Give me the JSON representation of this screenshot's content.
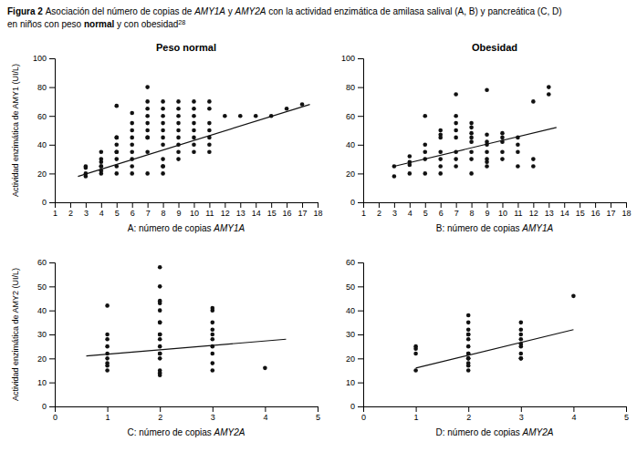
{
  "title": [
    [
      "Figura 2 ",
      "Asociación del número de copias de ",
      "AMY1A",
      " y ",
      "AMY2A",
      " con la actividad enzimática de amilasa salival (A, B) y pancreática (C, D)"
    ],
    [
      "en niños con peso ",
      "normal",
      " y con obesidad",
      "28"
    ]
  ],
  "chart_data": [
    {
      "type": "scatter",
      "title": "Peso normal",
      "y_label": "Actividad enzimática de AMY1 (UI/L)",
      "x_label": "A: número de copias AMY1A",
      "xlim": [
        1,
        18
      ],
      "ylim": [
        0,
        100
      ],
      "xticks": [
        1,
        2,
        3,
        4,
        5,
        6,
        7,
        8,
        9,
        10,
        11,
        12,
        13,
        14,
        15,
        16,
        17,
        18
      ],
      "yticks": [
        0,
        20,
        40,
        60,
        80,
        100
      ],
      "grid": false,
      "series": [
        {
          "type": "scatter",
          "color": "#111111",
          "x": [
            3,
            3,
            3,
            3,
            4,
            4,
            4,
            4,
            4,
            4,
            4,
            5,
            5,
            5,
            5,
            5,
            5,
            5,
            5,
            5,
            6,
            6,
            6,
            6,
            6,
            6,
            6,
            6,
            6,
            7,
            7,
            7,
            7,
            7,
            7,
            7,
            7,
            7,
            7,
            8,
            8,
            8,
            8,
            8,
            8,
            8,
            8,
            8,
            8,
            8,
            9,
            9,
            9,
            9,
            9,
            9,
            9,
            9,
            9,
            10,
            10,
            10,
            10,
            10,
            10,
            10,
            10,
            11,
            11,
            11,
            11,
            11,
            11,
            11,
            12,
            13,
            14,
            15,
            16,
            17
          ],
          "values": [
            20,
            24,
            25,
            18,
            25,
            30,
            35,
            25,
            20,
            28,
            22,
            35,
            40,
            45,
            30,
            25,
            20,
            35,
            67,
            45,
            40,
            45,
            50,
            55,
            62,
            35,
            30,
            25,
            20,
            65,
            45,
            70,
            80,
            50,
            60,
            55,
            35,
            20,
            45,
            45,
            60,
            50,
            55,
            65,
            70,
            40,
            25,
            20,
            30,
            25,
            60,
            65,
            55,
            50,
            45,
            40,
            35,
            70,
            30,
            60,
            55,
            50,
            45,
            40,
            35,
            70,
            65,
            70,
            65,
            55,
            45,
            40,
            35,
            50,
            60,
            60,
            60,
            60,
            65,
            68
          ]
        },
        {
          "type": "line",
          "color": "#111111",
          "x": [
            2.5,
            17.5
          ],
          "values": [
            18,
            68
          ]
        }
      ]
    },
    {
      "type": "scatter",
      "title": "Obesidad",
      "x_label": "B: número de copias AMY1A",
      "xlim": [
        1,
        18
      ],
      "ylim": [
        0,
        100
      ],
      "xticks": [
        1,
        2,
        3,
        4,
        5,
        6,
        7,
        8,
        9,
        10,
        11,
        12,
        13,
        14,
        15,
        16,
        17,
        18
      ],
      "yticks": [
        0,
        20,
        40,
        60,
        80,
        100
      ],
      "grid": false,
      "series": [
        {
          "type": "scatter",
          "color": "#111111",
          "x": [
            3,
            3,
            4,
            4,
            4,
            4,
            5,
            5,
            5,
            5,
            5,
            6,
            6,
            6,
            6,
            6,
            6,
            6,
            7,
            7,
            7,
            7,
            7,
            7,
            7,
            7,
            8,
            8,
            8,
            8,
            8,
            8,
            8,
            8,
            9,
            9,
            9,
            9,
            9,
            9,
            9,
            9,
            10,
            10,
            10,
            10,
            10,
            11,
            11,
            11,
            11,
            12,
            12,
            12,
            13,
            13
          ],
          "values": [
            18,
            25,
            32,
            26,
            20,
            28,
            35,
            40,
            60,
            30,
            20,
            47,
            50,
            45,
            35,
            30,
            25,
            20,
            45,
            50,
            55,
            60,
            75,
            35,
            25,
            30,
            42,
            48,
            52,
            35,
            30,
            20,
            45,
            55,
            40,
            42,
            47,
            78,
            30,
            35,
            25,
            28,
            45,
            48,
            42,
            35,
            30,
            45,
            40,
            35,
            25,
            30,
            25,
            70,
            75,
            80
          ]
        },
        {
          "type": "line",
          "color": "#111111",
          "x": [
            3,
            13.5
          ],
          "values": [
            25,
            52
          ]
        }
      ]
    },
    {
      "type": "scatter",
      "y_label": "Actividad enzimática de AMY2 (UI/L)",
      "x_label": "C: número de copias AMY2A",
      "xlim": [
        0,
        5
      ],
      "ylim": [
        0,
        60
      ],
      "xticks": [
        0,
        1,
        2,
        3,
        4,
        5
      ],
      "yticks": [
        0,
        10,
        20,
        30,
        40,
        50,
        60
      ],
      "grid": false,
      "series": [
        {
          "type": "scatter",
          "color": "#111111",
          "x": [
            1,
            1,
            1,
            1,
            1,
            1,
            1,
            1,
            1,
            2,
            2,
            2,
            2,
            2,
            2,
            2,
            2,
            2,
            2,
            2,
            2,
            2,
            2,
            2,
            2,
            2,
            3,
            3,
            3,
            3,
            3,
            3,
            3,
            3,
            3,
            3,
            4
          ],
          "values": [
            20,
            25,
            28,
            22,
            18,
            15,
            30,
            17,
            42,
            22,
            25,
            30,
            35,
            40,
            44,
            50,
            58,
            28,
            20,
            15,
            13,
            30,
            35,
            43,
            22,
            14,
            25,
            30,
            35,
            40,
            32,
            28,
            22,
            15,
            41,
            18,
            16
          ]
        },
        {
          "type": "line",
          "color": "#111111",
          "x": [
            0.6,
            4.4
          ],
          "values": [
            21,
            28
          ]
        }
      ]
    },
    {
      "type": "scatter",
      "x_label": "D: número de copias AMY2A",
      "xlim": [
        0,
        5
      ],
      "ylim": [
        0,
        60
      ],
      "xticks": [
        0,
        1,
        2,
        3,
        4,
        5
      ],
      "yticks": [
        0,
        10,
        20,
        30,
        40,
        50,
        60
      ],
      "grid": false,
      "series": [
        {
          "type": "scatter",
          "color": "#111111",
          "x": [
            1,
            1,
            1,
            1,
            2,
            2,
            2,
            2,
            2,
            2,
            2,
            2,
            2,
            2,
            2,
            2,
            2,
            2,
            3,
            3,
            3,
            3,
            3,
            3,
            3,
            3,
            3,
            4
          ],
          "values": [
            15,
            22,
            25,
            24,
            17,
            20,
            22,
            25,
            28,
            30,
            32,
            35,
            38,
            20,
            15,
            18,
            22,
            30,
            20,
            22,
            25,
            28,
            30,
            35,
            26,
            32,
            20,
            46
          ]
        },
        {
          "type": "line",
          "color": "#111111",
          "x": [
            1,
            4
          ],
          "values": [
            16,
            32
          ]
        }
      ]
    }
  ]
}
